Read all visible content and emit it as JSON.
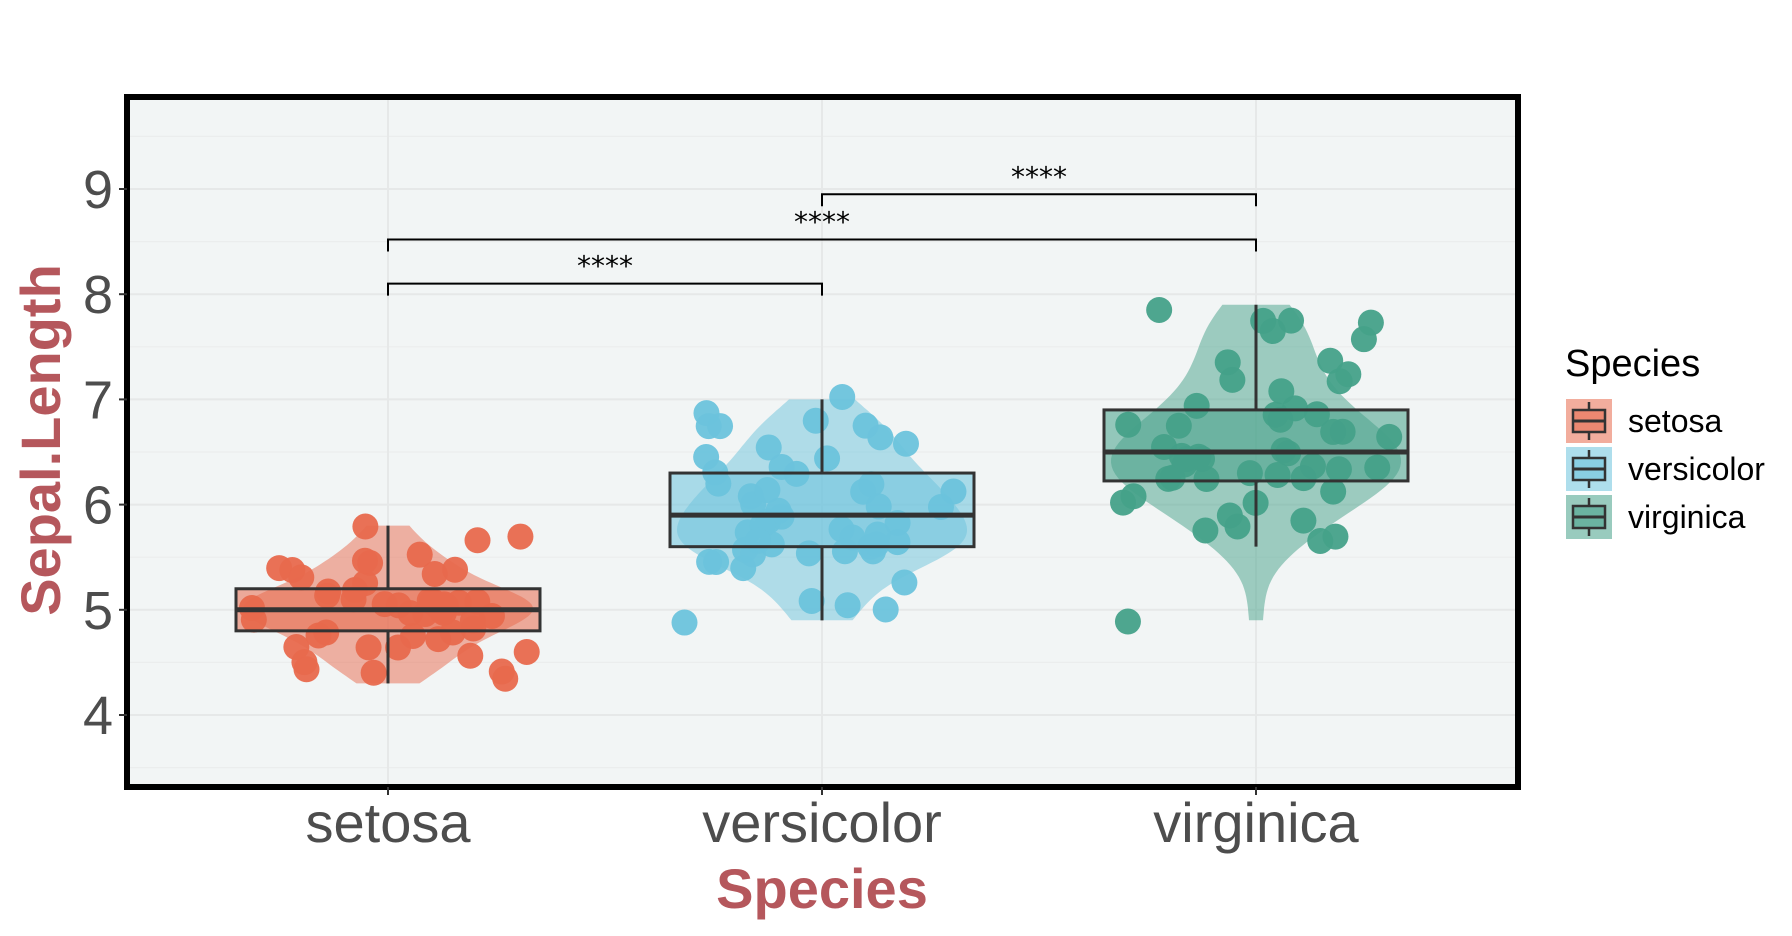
{
  "chart_data": {
    "type": "violin-box-jitter",
    "title": "",
    "xlabel": "Species",
    "ylabel": "Sepal.Length",
    "categories": [
      "setosa",
      "versicolor",
      "virginica"
    ],
    "y_ticks": [
      4,
      5,
      6,
      7,
      8,
      9
    ],
    "ylim": [
      3.35,
      9.85
    ],
    "grid": true,
    "legend": {
      "title": "Species",
      "position": "right",
      "entries": [
        "setosa",
        "versicolor",
        "virginica"
      ]
    },
    "colors": {
      "setosa": "#e8694d",
      "versicolor": "#6cc3dc",
      "virginica": "#45a189"
    },
    "axis_title_color": "#b5575c",
    "panel_background": "#f2f5f5",
    "boxes": [
      {
        "group": "setosa",
        "min": 4.3,
        "q1": 4.8,
        "median": 5.0,
        "q3": 5.2,
        "max": 5.8
      },
      {
        "group": "versicolor",
        "min": 4.9,
        "q1": 5.6,
        "median": 5.9,
        "q3": 6.3,
        "max": 7.0
      },
      {
        "group": "virginica",
        "min": 5.6,
        "q1": 6.225,
        "median": 6.5,
        "q3": 6.9,
        "max": 7.9
      }
    ],
    "points": {
      "setosa": [
        5.1,
        4.9,
        4.7,
        4.6,
        5.0,
        5.4,
        4.6,
        5.0,
        4.4,
        4.9,
        5.4,
        4.8,
        4.8,
        4.3,
        5.8,
        5.7,
        5.4,
        5.1,
        5.7,
        5.1,
        5.4,
        5.1,
        4.6,
        5.1,
        4.8,
        5.0,
        5.0,
        5.2,
        5.2,
        4.7,
        4.8,
        5.4,
        5.2,
        5.5,
        4.9,
        5.0,
        5.5,
        4.9,
        4.4,
        5.1,
        5.0,
        4.5,
        4.4,
        5.0,
        5.1,
        4.8,
        5.1,
        4.6,
        5.3,
        5.0
      ],
      "versicolor": [
        7.0,
        6.4,
        6.9,
        5.5,
        6.5,
        5.7,
        6.3,
        4.9,
        6.6,
        5.2,
        5.0,
        5.9,
        6.0,
        6.1,
        5.6,
        6.7,
        5.6,
        5.8,
        6.2,
        5.6,
        5.9,
        6.1,
        6.3,
        6.1,
        6.4,
        6.6,
        6.8,
        6.7,
        6.0,
        5.7,
        5.5,
        5.5,
        5.8,
        6.0,
        5.4,
        6.0,
        6.7,
        6.3,
        5.6,
        5.5,
        5.5,
        6.1,
        5.8,
        5.0,
        5.6,
        5.7,
        5.7,
        6.2,
        5.1,
        5.7
      ],
      "virginica": [
        6.3,
        5.8,
        7.1,
        6.3,
        6.5,
        7.6,
        4.9,
        7.3,
        6.7,
        7.2,
        6.5,
        6.4,
        6.8,
        5.7,
        5.8,
        6.4,
        6.5,
        7.7,
        7.7,
        6.0,
        6.9,
        5.6,
        7.7,
        6.3,
        6.7,
        7.2,
        6.2,
        6.1,
        6.4,
        7.2,
        7.4,
        7.9,
        6.4,
        6.3,
        6.1,
        7.7,
        6.3,
        6.4,
        6.0,
        6.9,
        6.7,
        6.9,
        5.8,
        6.8,
        6.7,
        6.7,
        6.3,
        6.5,
        6.2,
        5.9
      ]
    },
    "comparisons": [
      {
        "group1": "setosa",
        "group2": "versicolor",
        "y": 8.1,
        "label": "****"
      },
      {
        "group1": "setosa",
        "group2": "virginica",
        "y": 8.52,
        "label": "****"
      },
      {
        "group1": "versicolor",
        "group2": "virginica",
        "y": 8.95,
        "label": "****"
      }
    ]
  }
}
